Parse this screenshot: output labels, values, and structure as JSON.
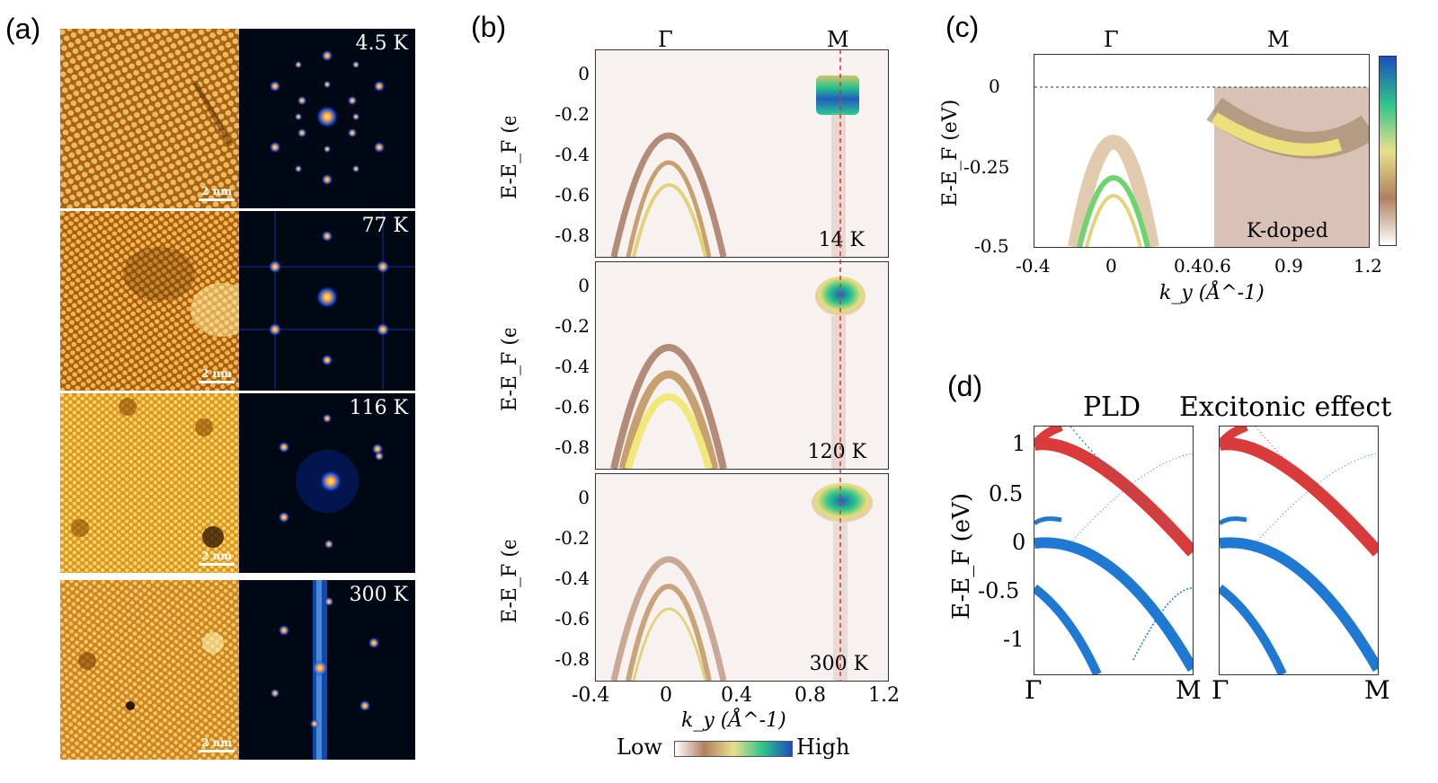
{
  "panel_labels": {
    "a": "(a)",
    "b": "(b)",
    "c": "(c)",
    "d": "(d)"
  },
  "panel_a": {
    "scale_bar": "2 nm",
    "temperatures": [
      "4.5 K",
      "77 K",
      "116 K",
      "300 K"
    ]
  },
  "panel_b": {
    "top_labels": [
      "Γ",
      "M"
    ],
    "ylabel": "E-E_F (eV)",
    "yticks": [
      "0",
      "-0.2",
      "-0.4",
      "-0.6",
      "-0.8"
    ],
    "xticks": [
      "-0.4",
      "0",
      "0.4",
      "0.8",
      "1.2"
    ],
    "xlabel": "k_y (Å^-1)",
    "temperatures": [
      "14 K",
      "120 K",
      "300 K"
    ],
    "colorbar_low": "Low",
    "colorbar_high": "High"
  },
  "panel_c": {
    "top_labels": [
      "Γ",
      "M"
    ],
    "ylabel": "E-E_F (eV)",
    "yticks": [
      "0",
      "-0.25",
      "-0.5"
    ],
    "xticks": [
      "-0.4",
      "0",
      "0.4",
      "0.6",
      "0.9",
      "1.2"
    ],
    "xlabel": "k_y (Å^-1)",
    "annotation": "K-doped"
  },
  "panel_d": {
    "titles": [
      "PLD",
      "Excitonic effect"
    ],
    "ylabel": "E-E_F (eV)",
    "yticks": [
      "1",
      "0.5",
      "0",
      "-0.5",
      "-1"
    ],
    "xticks": [
      "Γ",
      "M",
      "Γ",
      "M"
    ]
  },
  "chart_data": [
    {
      "type": "heatmap",
      "title": "14 K",
      "xlabel": "k_y (Å^-1)",
      "ylabel": "E-E_F (eV)",
      "xlim": [
        -0.4,
        1.2
      ],
      "ylim": [
        -0.8,
        0.1
      ],
      "M_point": 0.96
    },
    {
      "type": "heatmap",
      "title": "120 K",
      "xlabel": "k_y (Å^-1)",
      "ylabel": "E-E_F (eV)",
      "xlim": [
        -0.4,
        1.2
      ],
      "ylim": [
        -0.8,
        0.1
      ],
      "M_point": 0.96
    },
    {
      "type": "heatmap",
      "title": "300 K",
      "xlabel": "k_y (Å^-1)",
      "ylabel": "E-E_F (eV)",
      "xlim": [
        -0.4,
        1.2
      ],
      "ylim": [
        -0.8,
        0.1
      ],
      "M_point": 0.96
    },
    {
      "type": "heatmap",
      "title": "K-doped",
      "xlabel": "k_y (Å^-1)",
      "ylabel": "E-E_F (eV)",
      "ylim": [
        -0.5,
        0.05
      ]
    },
    {
      "type": "line",
      "title": "PLD",
      "ylabel": "E-E_F (eV)",
      "ylim": [
        -1.4,
        1.15
      ],
      "colors": {
        "conduction": "#d93a3a",
        "valence": "#1f78d1"
      }
    },
    {
      "type": "line",
      "title": "Excitonic effect",
      "ylabel": "E-E_F (eV)",
      "ylim": [
        -1.4,
        1.15
      ],
      "colors": {
        "conduction": "#d93a3a",
        "valence": "#1f78d1"
      }
    }
  ]
}
